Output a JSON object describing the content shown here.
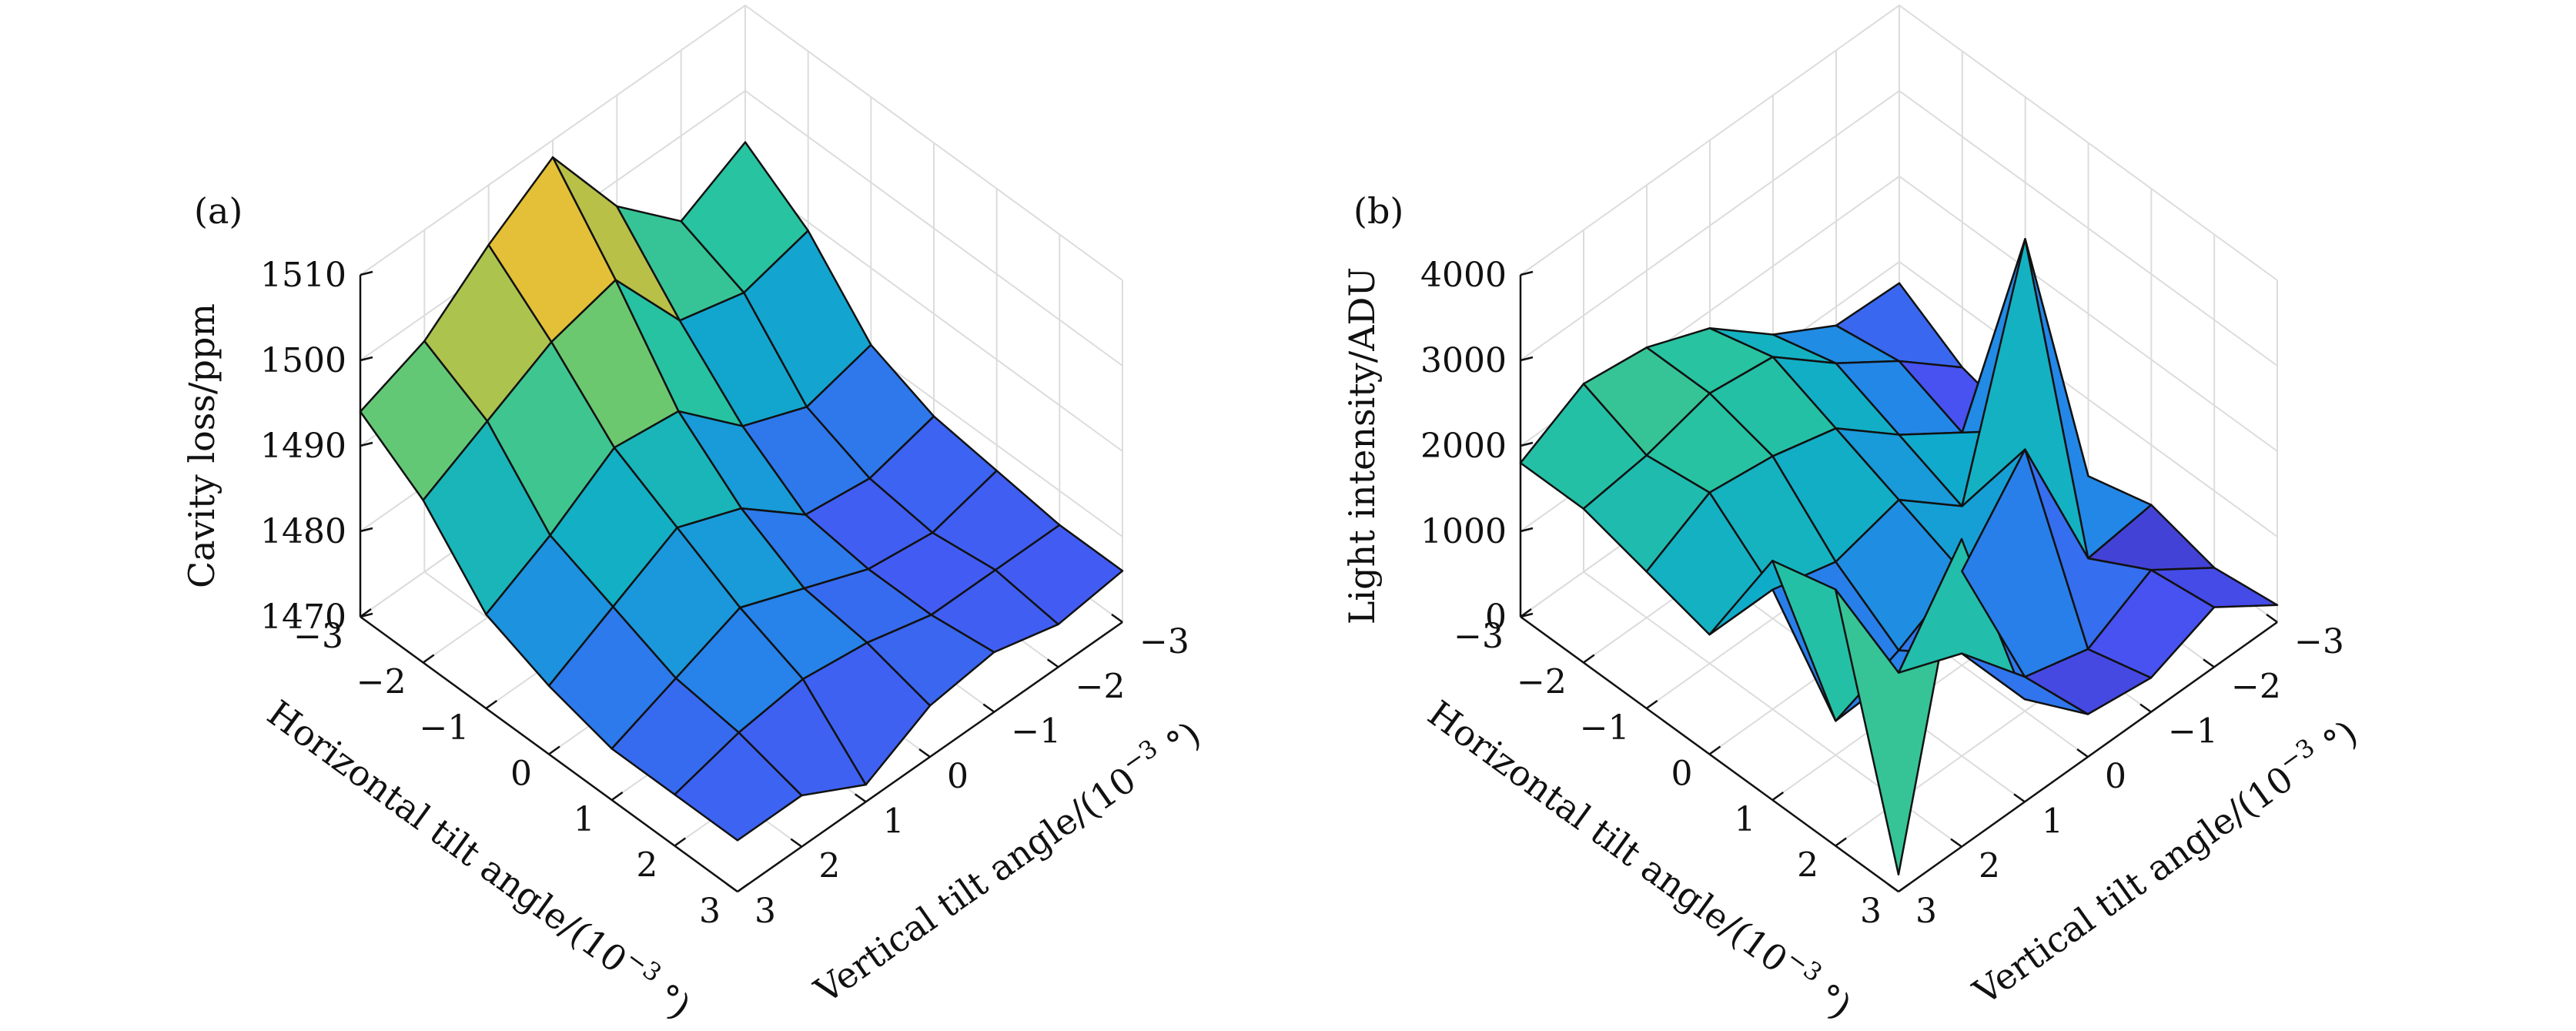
{
  "chart_data": [
    {
      "type": "surface",
      "panel_label": "(a)",
      "xlabel": "Horizontal tilt angle/(10",
      "ylabel": "Vertical tilt angle/(10",
      "axis_unit_exponent": "−3",
      "axis_unit_tail": " °)",
      "zlabel": "Cavity loss/ppm",
      "x_ticks": [
        "−3",
        "−2",
        "−1",
        "0",
        "1",
        "2",
        "3"
      ],
      "y_ticks": [
        "−3",
        "−2",
        "−1",
        "0",
        "1",
        "2",
        "3"
      ],
      "z_ticks": [
        "1470",
        "1480",
        "1490",
        "1500",
        "1510"
      ],
      "x": [
        -3,
        -2,
        -1,
        0,
        1,
        2,
        3
      ],
      "y": [
        -3,
        -2,
        -1,
        0,
        1,
        2,
        3
      ],
      "zlim": [
        1470,
        1510
      ],
      "colormap": "parula",
      "grid": true,
      "z": [
        [
          1494,
          1490,
          1497,
          1508,
          1503,
          1497,
          1494
        ],
        [
          1489,
          1487,
          1489,
          1499,
          1497,
          1493,
          1489
        ],
        [
          1481,
          1479,
          1482,
          1489,
          1490,
          1485,
          1481
        ],
        [
          1478,
          1476,
          1477,
          1483,
          1486,
          1482,
          1478
        ],
        [
          1477,
          1475,
          1476,
          1479,
          1482,
          1479,
          1476
        ],
        [
          1476,
          1476,
          1476,
          1478,
          1479,
          1478,
          1476
        ],
        [
          1476,
          1475,
          1477,
          1476,
          1472,
          1476,
          1476
        ]
      ]
    },
    {
      "type": "surface",
      "panel_label": "(b)",
      "xlabel": "Horizontal tilt angle/(10",
      "ylabel": "Vertical tilt angle/(10",
      "axis_unit_exponent": "−3",
      "axis_unit_tail": " °)",
      "zlabel": "Light intensity/ADU",
      "x_ticks": [
        "−3",
        "−2",
        "−1",
        "0",
        "1",
        "2",
        "3"
      ],
      "y_ticks": [
        "−3",
        "−2",
        "−1",
        "0",
        "1",
        "2",
        "3"
      ],
      "z_ticks": [
        "0",
        "1000",
        "2000",
        "3000",
        "4000"
      ],
      "x": [
        -3,
        -2,
        -1,
        0,
        1,
        2,
        3
      ],
      "y": [
        -3,
        -2,
        -1,
        0,
        1,
        2,
        3
      ],
      "zlim": [
        0,
        4000
      ],
      "colormap": "parula",
      "grid": true,
      "z": [
        [
          750,
          780,
          1200,
          1800,
          2100,
          2200,
          1800
        ],
        [
          300,
          900,
          1400,
          2000,
          2100,
          1900,
          1800
        ],
        [
          100,
          600,
          1100,
          1700,
          1900,
          2000,
          1600
        ],
        [
          100,
          3400,
          800,
          1400,
          1200,
          1400,
          1400
        ],
        [
          300,
          200,
          2000,
          1100,
          700,
          400,
          2800
        ],
        [
          100,
          600,
          200,
          400,
          1200,
          1500,
          3000
        ],
        [
          200,
          700,
          400,
          500,
          1200,
          3600,
          200
        ]
      ]
    }
  ]
}
